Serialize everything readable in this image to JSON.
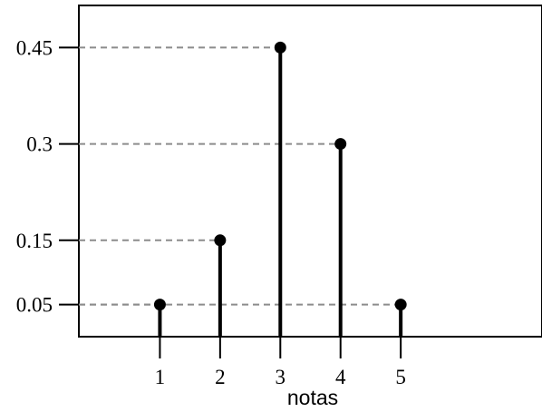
{
  "chart_data": {
    "type": "stem",
    "title": "",
    "xlabel": "notas",
    "ylabel": "",
    "x": [
      1,
      2,
      3,
      4,
      5
    ],
    "values": [
      0.05,
      0.15,
      0.45,
      0.3,
      0.05
    ],
    "x_tick_labels": [
      "1",
      "2",
      "3",
      "4",
      "5"
    ],
    "y_tick_labels": [
      "0.05",
      "0.15",
      "0.3",
      "0.45"
    ],
    "y_ticks": [
      0.05,
      0.15,
      0.3,
      0.45
    ],
    "xlim": [
      0.0,
      6.0
    ],
    "ylim": [
      0.0,
      0.5
    ],
    "reference_lines": "dashed horizontal lines from the y-axis to each stem top",
    "grid": false,
    "legend": "none",
    "colors": {
      "stem": "#000000",
      "dashed": "#8c8c8c",
      "frame": "#000000"
    }
  }
}
